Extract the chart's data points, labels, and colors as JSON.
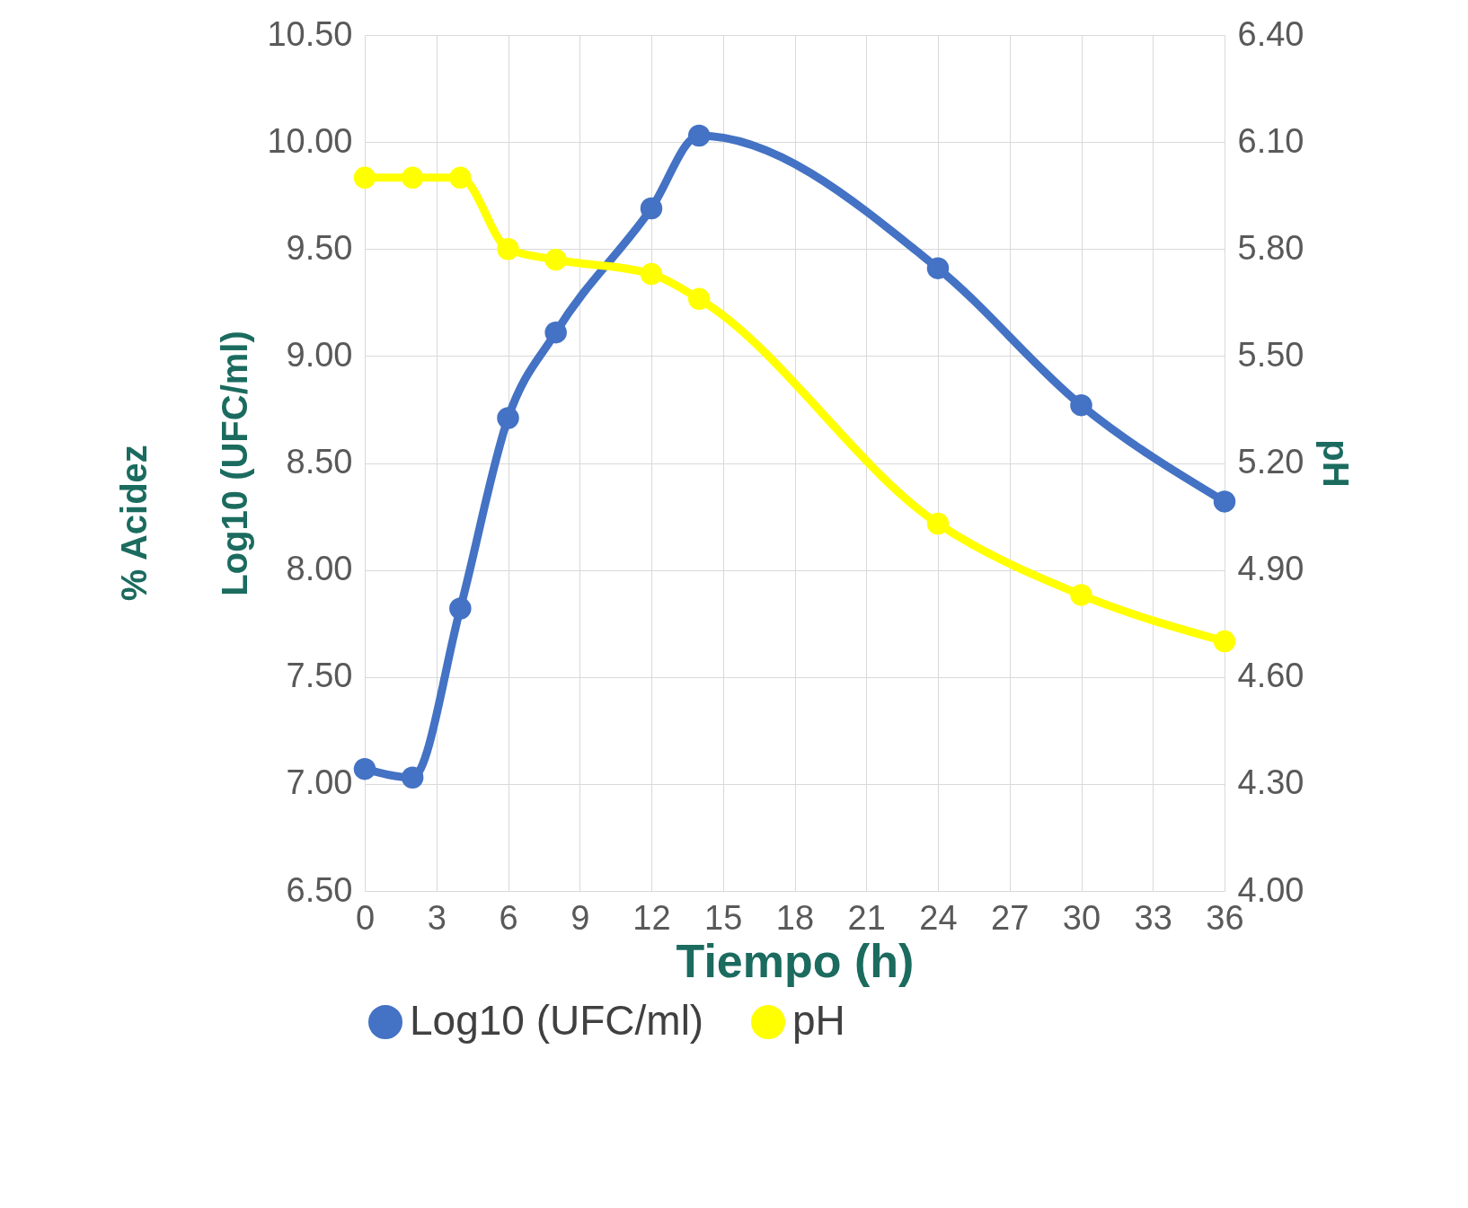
{
  "chart_data": {
    "type": "line",
    "xlabel": "Tiempo (h)",
    "ylabel": "Log10 (UFC/ml)",
    "y2label": "pH",
    "annotations": [
      "% Acidez"
    ],
    "xlim": [
      0,
      36
    ],
    "xticks": [
      0,
      3,
      6,
      9,
      12,
      15,
      18,
      21,
      24,
      27,
      30,
      33,
      36
    ],
    "ylim": [
      6.5,
      10.5
    ],
    "yticks": [
      {
        "value": 6.5,
        "label": "6.50"
      },
      {
        "value": 7,
        "label": "7.00"
      },
      {
        "value": 7.5,
        "label": "7.50"
      },
      {
        "value": 8,
        "label": "8.00"
      },
      {
        "value": 8.5,
        "label": "8.50"
      },
      {
        "value": 9,
        "label": "9.00"
      },
      {
        "value": 9.5,
        "label": "9.50"
      },
      {
        "value": 10,
        "label": "10.00"
      },
      {
        "value": 10.5,
        "label": "10.50"
      }
    ],
    "y2lim": [
      4.0,
      6.4
    ],
    "y2ticks": [
      {
        "value": 4.0,
        "label": "4.00"
      },
      {
        "value": 4.3,
        "label": "4.30"
      },
      {
        "value": 4.6,
        "label": "4.60"
      },
      {
        "value": 4.9,
        "label": "4.90"
      },
      {
        "value": 5.2,
        "label": "5.20"
      },
      {
        "value": 5.5,
        "label": "5.50"
      },
      {
        "value": 5.8,
        "label": "5.80"
      },
      {
        "value": 6.1,
        "label": "6.10"
      },
      {
        "value": 6.4,
        "label": "6.40"
      }
    ],
    "x": [
      0,
      2,
      4,
      6,
      8,
      12,
      14,
      24,
      30,
      36
    ],
    "series": [
      {
        "name": "Log10 (UFC/ml)",
        "color": "#4472c4",
        "values": [
          7.07,
          7.03,
          7.82,
          8.71,
          9.11,
          9.69,
          10.03,
          9.41,
          8.77,
          8.32
        ]
      },
      {
        "name": "pH",
        "color": "#ffff00",
        "axis": "y2",
        "values": [
          6.0,
          6.0,
          6.0,
          5.8,
          5.77,
          5.73,
          5.66,
          5.03,
          4.83,
          4.7
        ]
      }
    ],
    "grid": true,
    "legend": "bottom",
    "marker": "circle",
    "line_style": "solid"
  }
}
